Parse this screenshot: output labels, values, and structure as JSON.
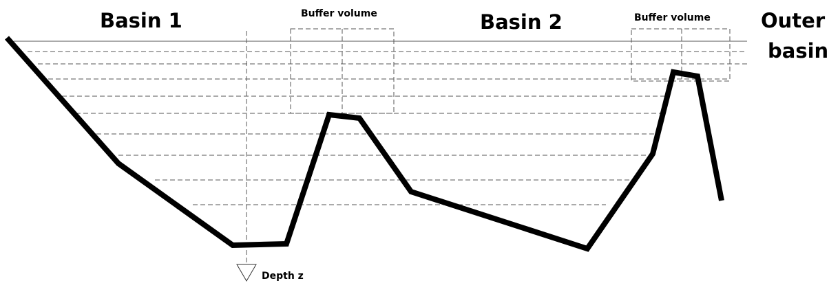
{
  "labels": {
    "basin_1": "Basin 1",
    "basin_2": "Basin 2",
    "outer_basin": [
      "Outer",
      "basin"
    ],
    "buffer_1": "Buffer volume",
    "buffer_2": "Buffer volume",
    "depth": "Depth z"
  }
}
